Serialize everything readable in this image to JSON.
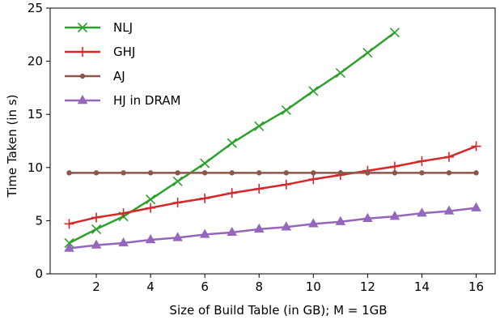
{
  "chart_data": {
    "type": "line",
    "xlabel": "Size of Build Table (in GB); M = 1GB",
    "ylabel": "Time Taken (in s)",
    "xlim": [
      0.3,
      16.7
    ],
    "ylim": [
      0,
      25
    ],
    "xticks": [
      2,
      4,
      6,
      8,
      10,
      12,
      14,
      16
    ],
    "yticks": [
      0,
      5,
      10,
      15,
      20,
      25
    ],
    "grid": false,
    "legend_position": "top-left",
    "series": [
      {
        "name": "NLJ",
        "color": "#2ca02c",
        "marker": "x",
        "x": [
          1,
          2,
          3,
          4,
          5,
          6,
          7,
          8,
          9,
          10,
          11,
          12,
          13
        ],
        "y": [
          2.9,
          4.2,
          5.4,
          7.0,
          8.7,
          10.4,
          12.3,
          13.9,
          15.4,
          17.2,
          18.9,
          20.8,
          22.7
        ]
      },
      {
        "name": "GHJ",
        "color": "#d62728",
        "marker": "plus",
        "x": [
          1,
          2,
          3,
          4,
          5,
          6,
          7,
          8,
          9,
          10,
          11,
          12,
          13,
          14,
          15,
          16
        ],
        "y": [
          4.7,
          5.3,
          5.7,
          6.2,
          6.7,
          7.1,
          7.6,
          8.0,
          8.4,
          8.9,
          9.3,
          9.7,
          10.1,
          10.6,
          11.0,
          12.0
        ]
      },
      {
        "name": "AJ",
        "color": "#8c564b",
        "marker": "dot",
        "x": [
          1,
          2,
          3,
          4,
          5,
          6,
          7,
          8,
          9,
          10,
          11,
          12,
          13,
          14,
          15,
          16
        ],
        "y": [
          9.5,
          9.5,
          9.5,
          9.5,
          9.5,
          9.5,
          9.5,
          9.5,
          9.5,
          9.5,
          9.5,
          9.5,
          9.5,
          9.5,
          9.5,
          9.5
        ]
      },
      {
        "name": "HJ in DRAM",
        "color": "#9467bd",
        "marker": "triangle",
        "x": [
          1,
          2,
          3,
          4,
          5,
          6,
          7,
          8,
          9,
          10,
          11,
          12,
          13,
          14,
          15,
          16
        ],
        "y": [
          2.4,
          2.7,
          2.9,
          3.2,
          3.4,
          3.7,
          3.9,
          4.2,
          4.4,
          4.7,
          4.9,
          5.2,
          5.4,
          5.7,
          5.9,
          6.2
        ]
      }
    ]
  }
}
